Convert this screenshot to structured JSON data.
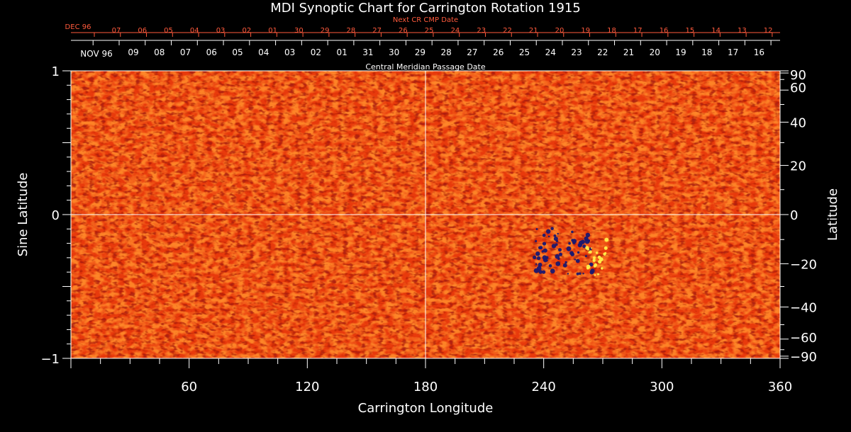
{
  "chart_data": {
    "type": "heatmap",
    "title": "MDI Synoptic Chart for Carrington Rotation 1915",
    "xlabel": "Carrington Longitude",
    "ylabel_left": "Sine Latitude",
    "ylabel_right": "Latitude",
    "xlim": [
      0,
      360
    ],
    "ylim": [
      -1,
      1
    ],
    "x_ticks": [
      "60",
      "120",
      "180",
      "240",
      "300",
      "360"
    ],
    "x_tick_values": [
      60,
      120,
      180,
      240,
      300,
      360
    ],
    "y_left_ticks": [
      "1",
      "0",
      "−1"
    ],
    "y_left_tick_values": [
      1,
      0,
      -1
    ],
    "y_right_ticks": [
      "90",
      "60",
      "40",
      "20",
      "0",
      "−20",
      "−40",
      "−60",
      "−90"
    ],
    "y_right_tick_values": [
      90,
      60,
      40,
      20,
      0,
      -20,
      -40,
      -60,
      -90
    ],
    "top_axis_outer": {
      "label": "Next CR CMP Date",
      "month_label": "DEC 96",
      "dates": [
        "07",
        "06",
        "05",
        "04",
        "03",
        "02",
        "01",
        "30",
        "29",
        "28",
        "27",
        "26",
        "25",
        "24",
        "23",
        "22",
        "21",
        "20",
        "19",
        "18",
        "17",
        "16",
        "15",
        "14",
        "13",
        "12"
      ]
    },
    "top_axis_inner": {
      "label": "Central Meridian Passage Date",
      "month_label": "NOV 96",
      "dates": [
        "09",
        "08",
        "07",
        "06",
        "05",
        "04",
        "03",
        "02",
        "01",
        "31",
        "30",
        "29",
        "28",
        "27",
        "26",
        "25",
        "24",
        "23",
        "22",
        "21",
        "20",
        "19",
        "18",
        "17",
        "16"
      ]
    },
    "reference_lines": {
      "longitude": 180,
      "sine_latitude": 0
    },
    "features": [
      {
        "type": "negative-polarity active region",
        "longitude_range": [
          235,
          265
        ],
        "latitude_range": [
          -25,
          -5
        ]
      },
      {
        "type": "positive-polarity active region",
        "longitude_range": [
          262,
          272
        ],
        "latitude_range": [
          -25,
          -10
        ]
      }
    ],
    "colors": {
      "background": "#000000",
      "field_base": "#e83a0c",
      "field_light": "#ff8a2a",
      "field_dark": "#a8180a",
      "negative": "#1a1870",
      "positive": "#fff04a",
      "secondary_axis": "#ff5a3c"
    }
  }
}
